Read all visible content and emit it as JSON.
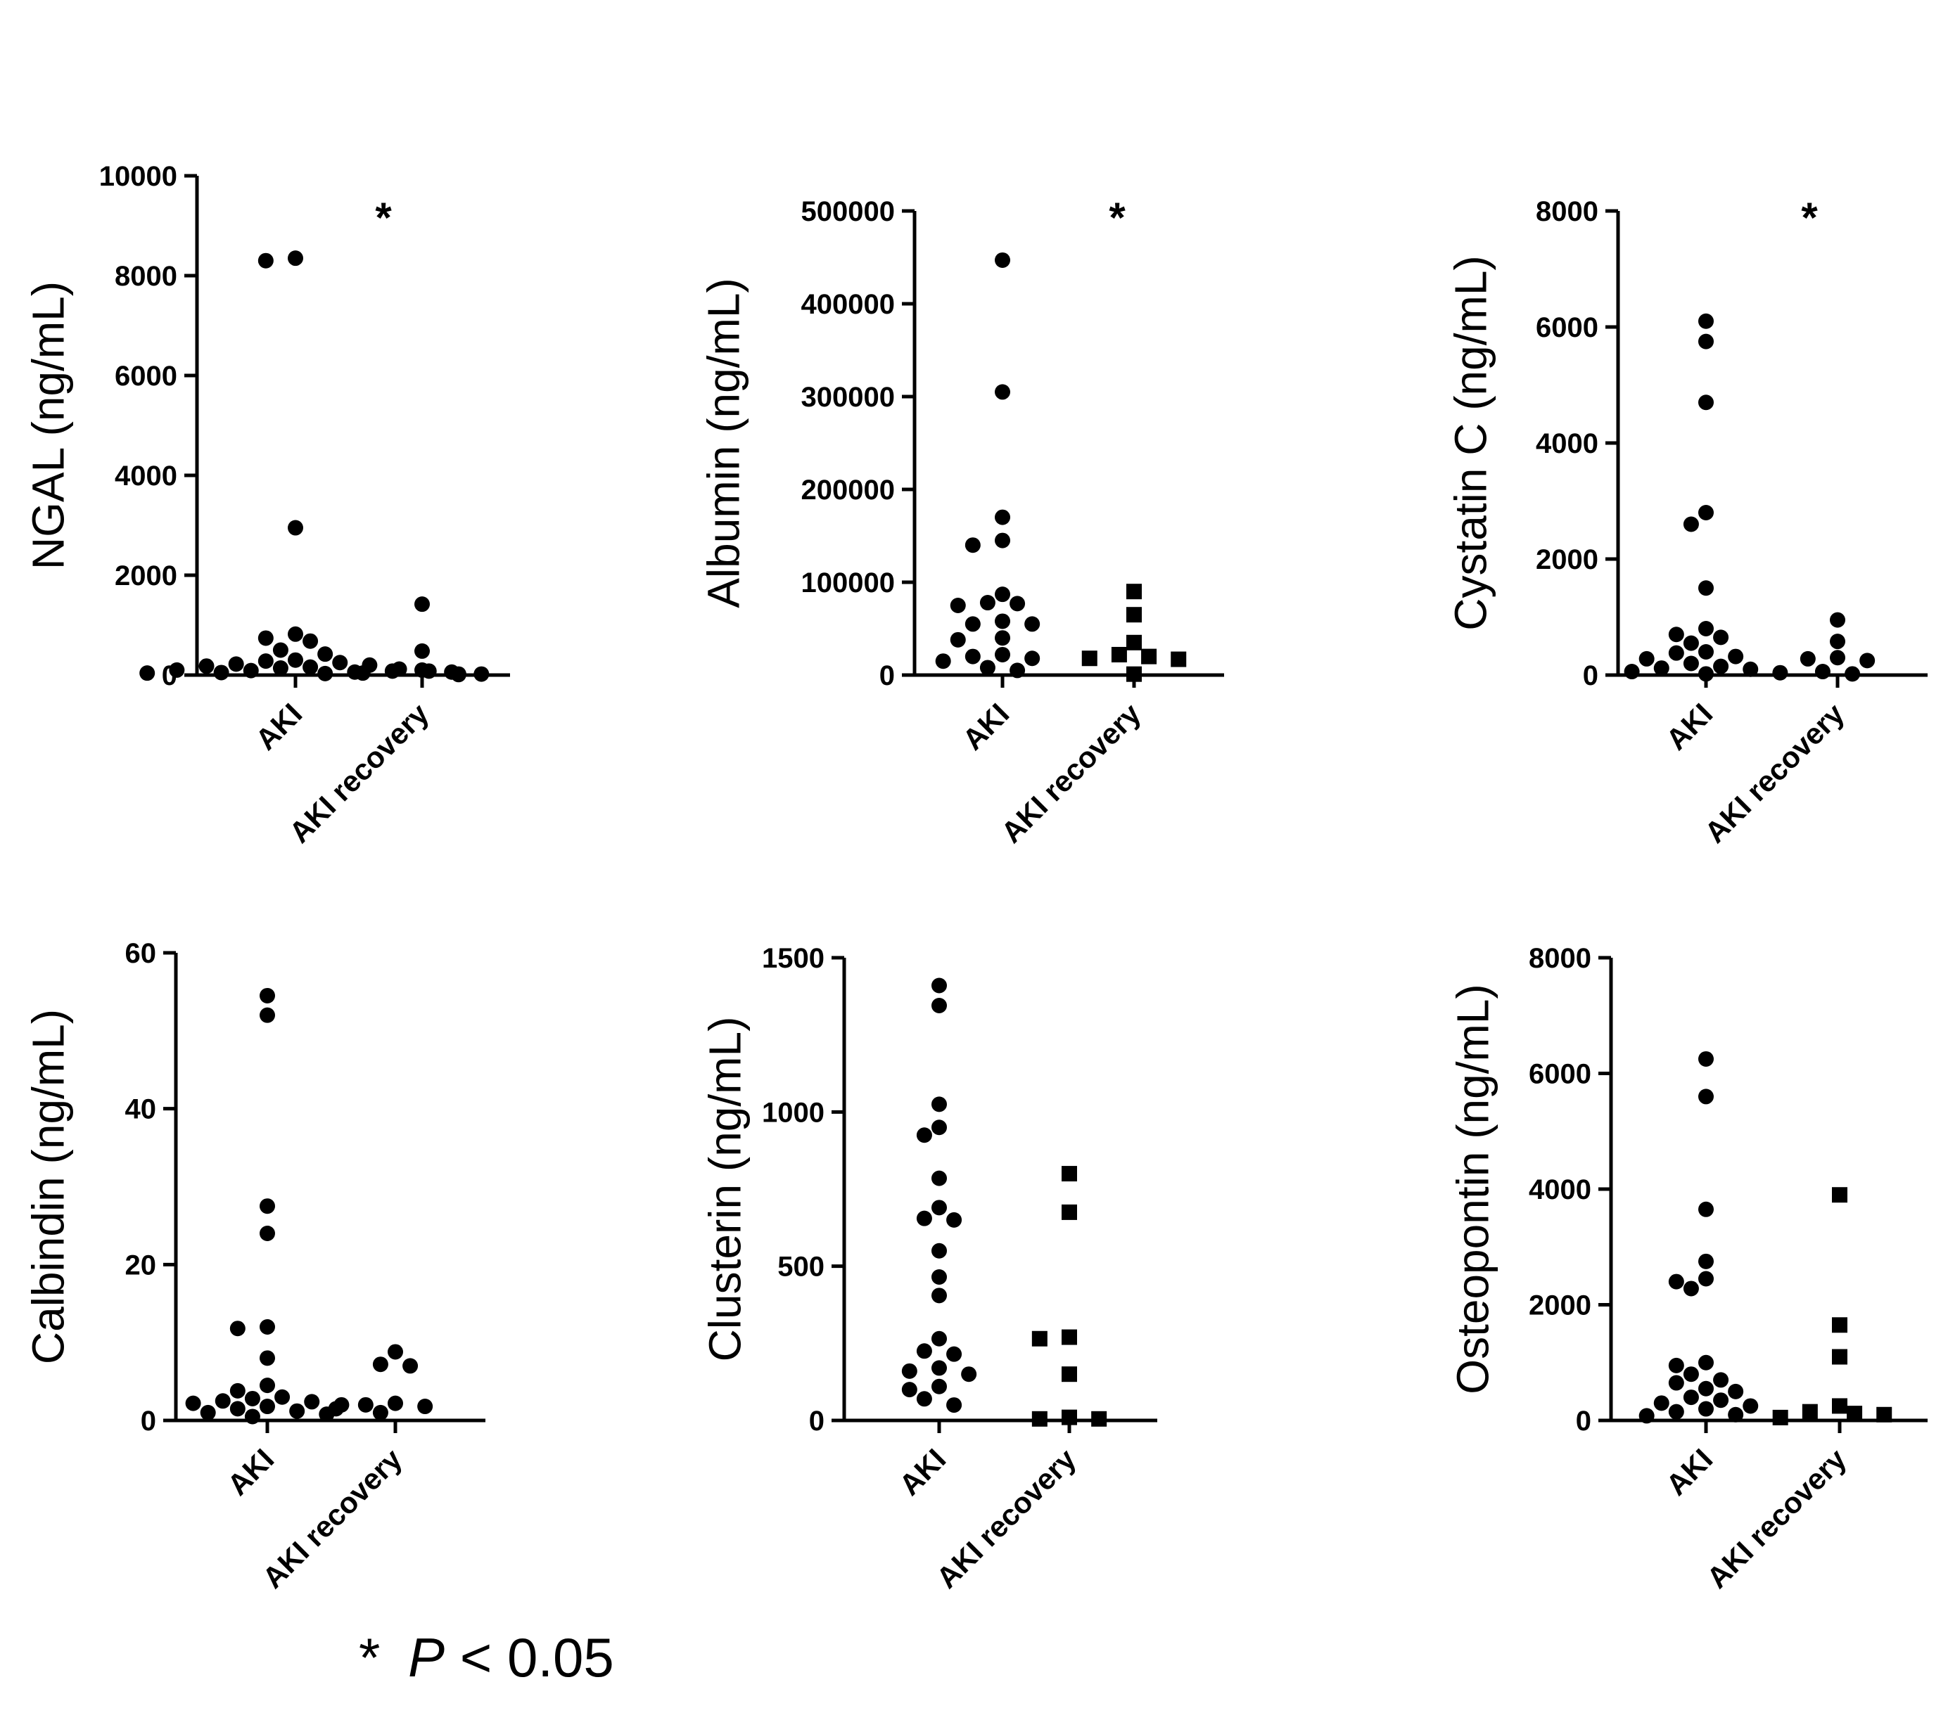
{
  "chart_data": [
    {
      "type": "scatter",
      "ylabel": "NGAL (ng/mL)",
      "ylim": [
        0,
        10000
      ],
      "yticks": [
        0,
        2000,
        4000,
        6000,
        8000,
        10000
      ],
      "categories": [
        "AKI",
        "AKI recovery"
      ],
      "significance": "*",
      "series": [
        {
          "category": "AKI",
          "marker": "circle",
          "values": [
            8350,
            8300,
            2950,
            820,
            740,
            680,
            500,
            420,
            300,
            280,
            250,
            220,
            200,
            180,
            160,
            140,
            120,
            100,
            90,
            80,
            60,
            50,
            40,
            30,
            20,
            10
          ]
        },
        {
          "category": "AKI recovery",
          "marker": "circle",
          "values": [
            1420,
            480,
            100,
            80,
            60,
            40,
            20
          ]
        }
      ]
    },
    {
      "type": "scatter",
      "ylabel": "Albumin (ng/mL)",
      "ylim": [
        0,
        500000
      ],
      "yticks": [
        0,
        100000,
        200000,
        300000,
        400000,
        500000
      ],
      "categories": [
        "AKI",
        "AKI recovery"
      ],
      "significance": "*",
      "series": [
        {
          "category": "AKI",
          "marker": "circle",
          "values": [
            447000,
            305000,
            170000,
            145000,
            140000,
            87000,
            78000,
            77000,
            75000,
            58000,
            55000,
            55000,
            40000,
            38000,
            22000,
            20000,
            18000,
            15000,
            8000,
            5000
          ]
        },
        {
          "category": "AKI recovery",
          "marker": "square",
          "values": [
            90000,
            65000,
            35000,
            22000,
            20000,
            18000,
            17000,
            1000
          ]
        }
      ]
    },
    {
      "type": "scatter",
      "ylabel": "Cystatin C (ng/mL)",
      "ylim": [
        0,
        8000
      ],
      "yticks": [
        0,
        2000,
        4000,
        6000,
        8000
      ],
      "categories": [
        "AKI",
        "AKI recovery"
      ],
      "significance": "*",
      "series": [
        {
          "category": "AKI",
          "marker": "circle",
          "values": [
            6100,
            5750,
            4700,
            2800,
            2600,
            1500,
            800,
            700,
            650,
            550,
            400,
            380,
            320,
            280,
            200,
            150,
            120,
            100,
            60,
            40,
            20
          ]
        },
        {
          "category": "AKI recovery",
          "marker": "circle",
          "values": [
            950,
            580,
            300,
            280,
            250,
            60,
            20
          ]
        }
      ]
    },
    {
      "type": "scatter",
      "ylabel": "Calbindin (ng/mL)",
      "ylim": [
        0,
        60
      ],
      "yticks": [
        0,
        20,
        40,
        60
      ],
      "categories": [
        "AKI",
        "AKI recovery"
      ],
      "significance": "",
      "series": [
        {
          "category": "AKI",
          "marker": "circle",
          "values": [
            54.5,
            52,
            27.5,
            24,
            12,
            11.8,
            8,
            4.5,
            3.8,
            3,
            2.8,
            2.5,
            2.4,
            2.2,
            2,
            1.8,
            1.5,
            1.2,
            1,
            0.8,
            0.5
          ]
        },
        {
          "category": "AKI recovery",
          "marker": "circle",
          "values": [
            8.8,
            7.2,
            7,
            2.2,
            2,
            1.8,
            1.5,
            1
          ]
        }
      ]
    },
    {
      "type": "scatter",
      "ylabel": "Clusterin (ng/mL)",
      "ylim": [
        0,
        1500
      ],
      "yticks": [
        0,
        500,
        1000,
        1500
      ],
      "categories": [
        "AKI",
        "AKI recovery"
      ],
      "significance": "",
      "series": [
        {
          "category": "AKI",
          "marker": "circle",
          "values": [
            1410,
            1345,
            1025,
            950,
            925,
            785,
            690,
            655,
            650,
            550,
            465,
            405,
            265,
            225,
            215,
            170,
            160,
            150,
            110,
            100,
            70,
            50
          ]
        },
        {
          "category": "AKI recovery",
          "marker": "square",
          "values": [
            800,
            675,
            270,
            265,
            150,
            10,
            5,
            5
          ]
        }
      ]
    },
    {
      "type": "scatter",
      "ylabel": "Osteopontin (ng/mL)",
      "ylim": [
        0,
        8000
      ],
      "yticks": [
        0,
        2000,
        4000,
        6000,
        8000
      ],
      "categories": [
        "AKI",
        "AKI recovery"
      ],
      "significance": "",
      "series": [
        {
          "category": "AKI",
          "marker": "circle",
          "values": [
            6250,
            5600,
            3650,
            2750,
            2450,
            2400,
            2280,
            1000,
            950,
            800,
            700,
            650,
            550,
            500,
            400,
            350,
            300,
            250,
            200,
            150,
            100,
            80
          ]
        },
        {
          "category": "AKI recovery",
          "marker": "square",
          "values": [
            3900,
            1650,
            1100,
            250,
            150,
            120,
            100,
            50
          ]
        }
      ]
    }
  ],
  "footnote": {
    "star": "*",
    "p": "P",
    "rest": " < 0.05"
  }
}
